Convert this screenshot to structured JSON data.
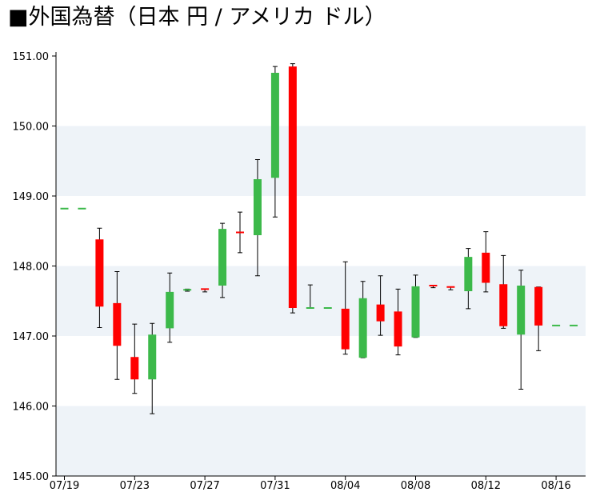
{
  "chart_data": {
    "type": "candlestick",
    "title": "■外国為替（日本 円 / アメリカ ドル）",
    "ylim": [
      145.0,
      151.0
    ],
    "y_ticks": [
      "145.00",
      "146.00",
      "147.00",
      "148.00",
      "149.00",
      "150.00",
      "151.00"
    ],
    "x_ticks": [
      "07/19",
      "07/23",
      "07/27",
      "07/31",
      "08/04",
      "08/08",
      "08/12",
      "08/16"
    ],
    "colors": {
      "up": "#3cb94a",
      "down": "#ff0000",
      "band": "#eef3f8",
      "wick": "#000000"
    },
    "candles": [
      {
        "date": "07/19",
        "open": 148.82,
        "high": 148.82,
        "low": 148.82,
        "close": 148.82
      },
      {
        "date": "07/20",
        "open": 148.82,
        "high": 148.82,
        "low": 148.82,
        "close": 148.82
      },
      {
        "date": "07/21",
        "open": 148.38,
        "high": 148.54,
        "low": 147.12,
        "close": 147.42
      },
      {
        "date": "07/22",
        "open": 147.47,
        "high": 147.92,
        "low": 146.38,
        "close": 146.86
      },
      {
        "date": "07/23",
        "open": 146.7,
        "high": 147.17,
        "low": 146.18,
        "close": 146.38
      },
      {
        "date": "07/24",
        "open": 146.38,
        "high": 147.18,
        "low": 145.89,
        "close": 147.02
      },
      {
        "date": "07/25",
        "open": 147.11,
        "high": 147.9,
        "low": 146.91,
        "close": 147.63
      },
      {
        "date": "07/26",
        "open": 147.64,
        "high": 147.67,
        "low": 147.64,
        "close": 147.66
      },
      {
        "date": "07/27",
        "open": 147.67,
        "high": 147.67,
        "low": 147.63,
        "close": 147.65
      },
      {
        "date": "07/28",
        "open": 147.72,
        "high": 148.61,
        "low": 147.55,
        "close": 148.53
      },
      {
        "date": "07/29",
        "open": 148.48,
        "high": 148.77,
        "low": 148.19,
        "close": 148.46
      },
      {
        "date": "07/30",
        "open": 148.44,
        "high": 149.52,
        "low": 147.86,
        "close": 149.24
      },
      {
        "date": "07/31",
        "open": 149.26,
        "high": 150.85,
        "low": 148.7,
        "close": 150.76
      },
      {
        "date": "08/01",
        "open": 150.85,
        "high": 150.89,
        "low": 147.33,
        "close": 147.4
      },
      {
        "date": "08/02",
        "open": 147.4,
        "high": 147.73,
        "low": 147.4,
        "close": 147.4
      },
      {
        "date": "08/03",
        "open": 147.4,
        "high": 147.4,
        "low": 147.4,
        "close": 147.4
      },
      {
        "date": "08/04",
        "open": 147.39,
        "high": 148.06,
        "low": 146.74,
        "close": 146.81
      },
      {
        "date": "08/05",
        "open": 146.69,
        "high": 147.78,
        "low": 146.69,
        "close": 147.54
      },
      {
        "date": "08/06",
        "open": 147.45,
        "high": 147.86,
        "low": 147.01,
        "close": 147.21
      },
      {
        "date": "08/07",
        "open": 147.35,
        "high": 147.67,
        "low": 146.73,
        "close": 146.85
      },
      {
        "date": "08/08",
        "open": 146.98,
        "high": 147.87,
        "low": 146.98,
        "close": 147.71
      },
      {
        "date": "08/09",
        "open": 147.72,
        "high": 147.72,
        "low": 147.69,
        "close": 147.7
      },
      {
        "date": "08/10",
        "open": 147.7,
        "high": 147.7,
        "low": 147.66,
        "close": 147.68
      },
      {
        "date": "08/11",
        "open": 147.64,
        "high": 148.25,
        "low": 147.39,
        "close": 148.13
      },
      {
        "date": "08/12",
        "open": 148.19,
        "high": 148.49,
        "low": 147.63,
        "close": 147.76
      },
      {
        "date": "08/13",
        "open": 147.74,
        "high": 148.15,
        "low": 147.11,
        "close": 147.14
      },
      {
        "date": "08/14",
        "open": 147.02,
        "high": 147.94,
        "low": 146.24,
        "close": 147.72
      },
      {
        "date": "08/15",
        "open": 147.7,
        "high": 147.7,
        "low": 146.79,
        "close": 147.15
      },
      {
        "date": "08/16",
        "open": 147.15,
        "high": 147.15,
        "low": 147.15,
        "close": 147.15
      },
      {
        "date": "08/17",
        "open": 147.15,
        "high": 147.15,
        "low": 147.15,
        "close": 147.15
      }
    ]
  }
}
